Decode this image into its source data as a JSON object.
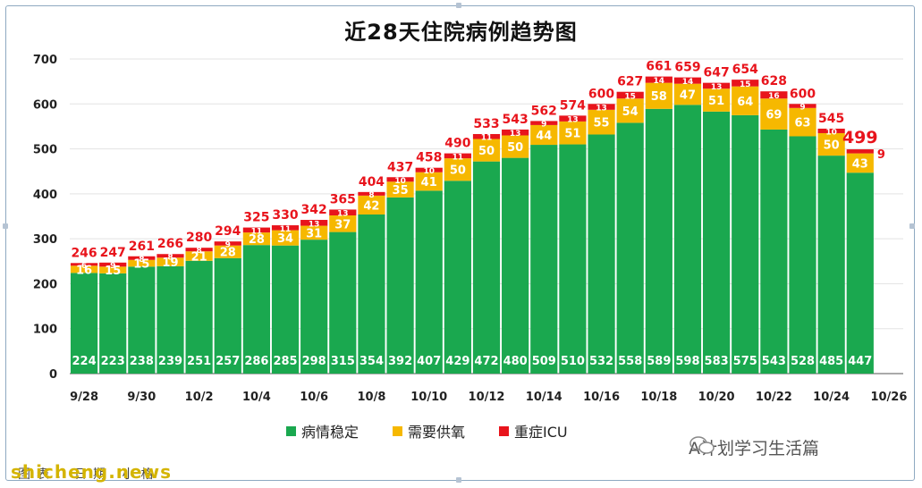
{
  "chart_data": {
    "type": "bar",
    "stacked": true,
    "title": "近28天住院病例趋势图",
    "categories": [
      "9/28",
      "9/29",
      "9/30",
      "10/1",
      "10/2",
      "10/3",
      "10/4",
      "10/5",
      "10/6",
      "10/7",
      "10/8",
      "10/9",
      "10/10",
      "10/11",
      "10/12",
      "10/13",
      "10/14",
      "10/15",
      "10/16",
      "10/17",
      "10/18",
      "10/19",
      "10/20",
      "10/21",
      "10/22",
      "10/23",
      "10/24",
      "10/25"
    ],
    "x_tick_labels": [
      "9/28",
      "9/30",
      "10/2",
      "10/4",
      "10/6",
      "10/8",
      "10/10",
      "10/12",
      "10/14",
      "10/16",
      "10/18",
      "10/20",
      "10/22",
      "10/24",
      "10/26"
    ],
    "ylim": [
      0,
      700
    ],
    "yticks": [
      0,
      100,
      200,
      300,
      400,
      500,
      600,
      700
    ],
    "grid": true,
    "legend_position": "bottom",
    "series": [
      {
        "name": "病情稳定",
        "color": "#1aa84f",
        "values": [
          224,
          223,
          238,
          239,
          251,
          257,
          286,
          285,
          298,
          315,
          354,
          392,
          407,
          429,
          472,
          480,
          509,
          510,
          532,
          558,
          589,
          598,
          583,
          575,
          543,
          528,
          485,
          447
        ]
      },
      {
        "name": "需要供氧",
        "color": "#f6b800",
        "values": [
          16,
          15,
          15,
          19,
          21,
          28,
          28,
          34,
          31,
          37,
          42,
          35,
          41,
          50,
          50,
          50,
          44,
          51,
          55,
          54,
          58,
          47,
          51,
          64,
          69,
          63,
          50,
          43
        ]
      },
      {
        "name": "重症ICU",
        "color": "#e8141c",
        "values": [
          6,
          9,
          8,
          8,
          8,
          9,
          11,
          11,
          13,
          13,
          8,
          10,
          10,
          11,
          11,
          13,
          9,
          13,
          13,
          15,
          14,
          14,
          13,
          15,
          16,
          9,
          10,
          9
        ]
      }
    ],
    "totals": [
      246,
      247,
      261,
      266,
      280,
      294,
      325,
      330,
      342,
      365,
      404,
      437,
      458,
      490,
      533,
      543,
      562,
      574,
      600,
      627,
      661,
      659,
      647,
      654,
      628,
      600,
      545,
      499
    ]
  },
  "legend": {
    "stable": "病情稳定",
    "oxygen": "需要供氧",
    "icu": "重症ICU"
  },
  "watermark": "A计划学习生活篇",
  "site_watermark": "shicheng.news",
  "bottom_note": "图表：日期 小格"
}
